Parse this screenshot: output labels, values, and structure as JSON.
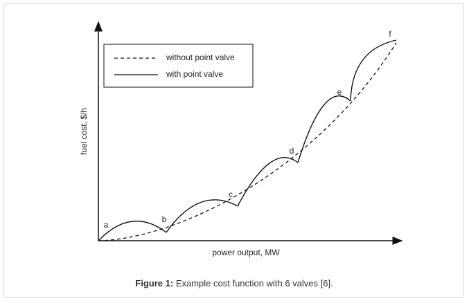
{
  "figure": {
    "y_axis_label": "fuel cost, $/h",
    "x_axis_label": "power output, MW",
    "legend": [
      "without point valve",
      "with point valve"
    ],
    "point_labels": [
      "a",
      "b",
      "c",
      "d",
      "e",
      "f"
    ],
    "caption": {
      "label": "Figure 1:",
      "text": "Example cost function with 6 valves [6]."
    }
  }
}
